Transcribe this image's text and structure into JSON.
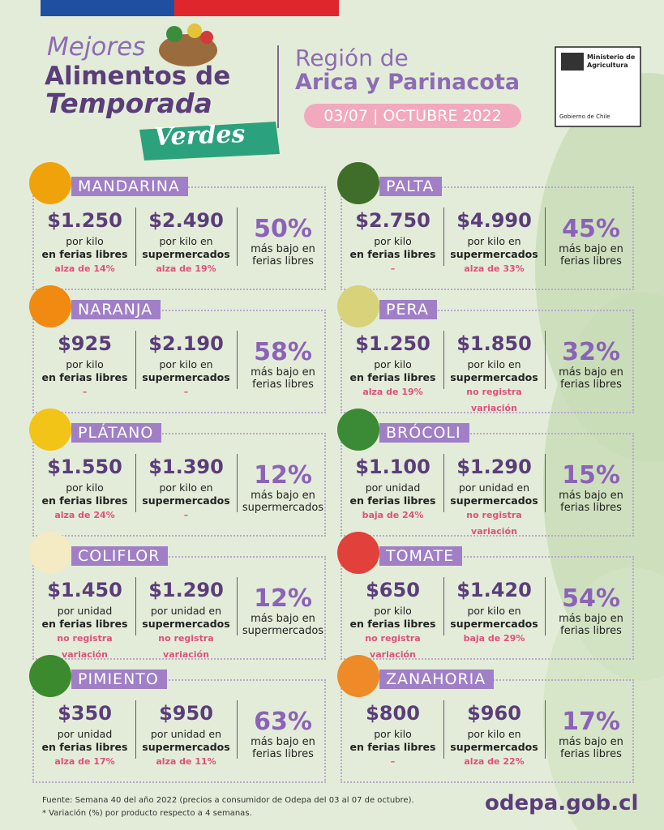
{
  "header": {
    "title_1": "Mejores",
    "title_2": "Alimentos de",
    "title_3": "Temporada",
    "title_4": "Verdes",
    "region_1": "Región de",
    "region_2": "Arica y Parinacota",
    "date": "03/07 | OCTUBRE 2022",
    "ministry": "Ministerio de Agricultura",
    "government": "Gobierno de Chile"
  },
  "items": [
    {
      "name": "MANDARINA",
      "feria": {
        "price": "$1.250",
        "unit": "por kilo",
        "place": "en ferias libres",
        "change": "alza de 14%"
      },
      "super": {
        "price": "$2.490",
        "unit": "por kilo en",
        "place": "supermercados",
        "change": "alza de 19%"
      },
      "pct": "50%",
      "pct_text": "más bajo en ferias libres"
    },
    {
      "name": "PALTA",
      "feria": {
        "price": "$2.750",
        "unit": "por kilo",
        "place": "en ferias libres",
        "change": "–"
      },
      "super": {
        "price": "$4.990",
        "unit": "por kilo en",
        "place": "supermercados",
        "change": "alza de 33%"
      },
      "pct": "45%",
      "pct_text": "más bajo en ferias libres"
    },
    {
      "name": "NARANJA",
      "feria": {
        "price": "$925",
        "unit": "por kilo",
        "place": "en ferias libres",
        "change": "–"
      },
      "super": {
        "price": "$2.190",
        "unit": "por kilo en",
        "place": "supermercados",
        "change": "–"
      },
      "pct": "58%",
      "pct_text": "más bajo en ferias libres"
    },
    {
      "name": "PERA",
      "feria": {
        "price": "$1.250",
        "unit": "por kilo",
        "place": "en ferias libres",
        "change": "alza de 19%"
      },
      "super": {
        "price": "$1.850",
        "unit": "por kilo en",
        "place": "supermercados",
        "change": "no registra variación"
      },
      "pct": "32%",
      "pct_text": "más bajo en ferias libres"
    },
    {
      "name": "PLÁTANO",
      "feria": {
        "price": "$1.550",
        "unit": "por kilo",
        "place": "en ferias libres",
        "change": "alza de 24%"
      },
      "super": {
        "price": "$1.390",
        "unit": "por kilo en",
        "place": "supermercados",
        "change": "–"
      },
      "pct": "12%",
      "pct_text": "más bajo en supermercados"
    },
    {
      "name": "BRÓCOLI",
      "feria": {
        "price": "$1.100",
        "unit": "por unidad",
        "place": "en ferias libres",
        "change": "baja de 24%"
      },
      "super": {
        "price": "$1.290",
        "unit": "por unidad en",
        "place": "supermercados",
        "change": "no registra variación"
      },
      "pct": "15%",
      "pct_text": "más bajo en ferias libres"
    },
    {
      "name": "COLIFLOR",
      "feria": {
        "price": "$1.450",
        "unit": "por unidad",
        "place": "en ferias libres",
        "change": "no registra variación"
      },
      "super": {
        "price": "$1.290",
        "unit": "por unidad en",
        "place": "supermercados",
        "change": "no registra variación"
      },
      "pct": "12%",
      "pct_text": "más bajo en supermercados"
    },
    {
      "name": "TOMATE",
      "feria": {
        "price": "$650",
        "unit": "por kilo",
        "place": "en ferias libres",
        "change": "no registra variación"
      },
      "super": {
        "price": "$1.420",
        "unit": "por kilo en",
        "place": "supermercados",
        "change": "baja de 29%"
      },
      "pct": "54%",
      "pct_text": "más bajo en ferias libres"
    },
    {
      "name": "PIMIENTO",
      "feria": {
        "price": "$350",
        "unit": "por unidad",
        "place": "en ferias libres",
        "change": "alza de 17%"
      },
      "super": {
        "price": "$950",
        "unit": "por unidad en",
        "place": "supermercados",
        "change": "alza de 11%"
      },
      "pct": "63%",
      "pct_text": "más bajo en ferias libres"
    },
    {
      "name": "ZANAHORIA",
      "feria": {
        "price": "$800",
        "unit": "por kilo",
        "place": "en ferias libres",
        "change": "–"
      },
      "super": {
        "price": "$960",
        "unit": "por kilo en",
        "place": "supermercados",
        "change": "alza de 22%"
      },
      "pct": "17%",
      "pct_text": "más bajo en ferias libres"
    }
  ],
  "footer": {
    "source": "Fuente: Semana 40 del año 2022 (precios a consumidor de Odepa del 03 al 07 de octubre).",
    "note": "* Variación (%) por producto respecto a 4 semanas.",
    "website": "odepa.gob.cl"
  }
}
